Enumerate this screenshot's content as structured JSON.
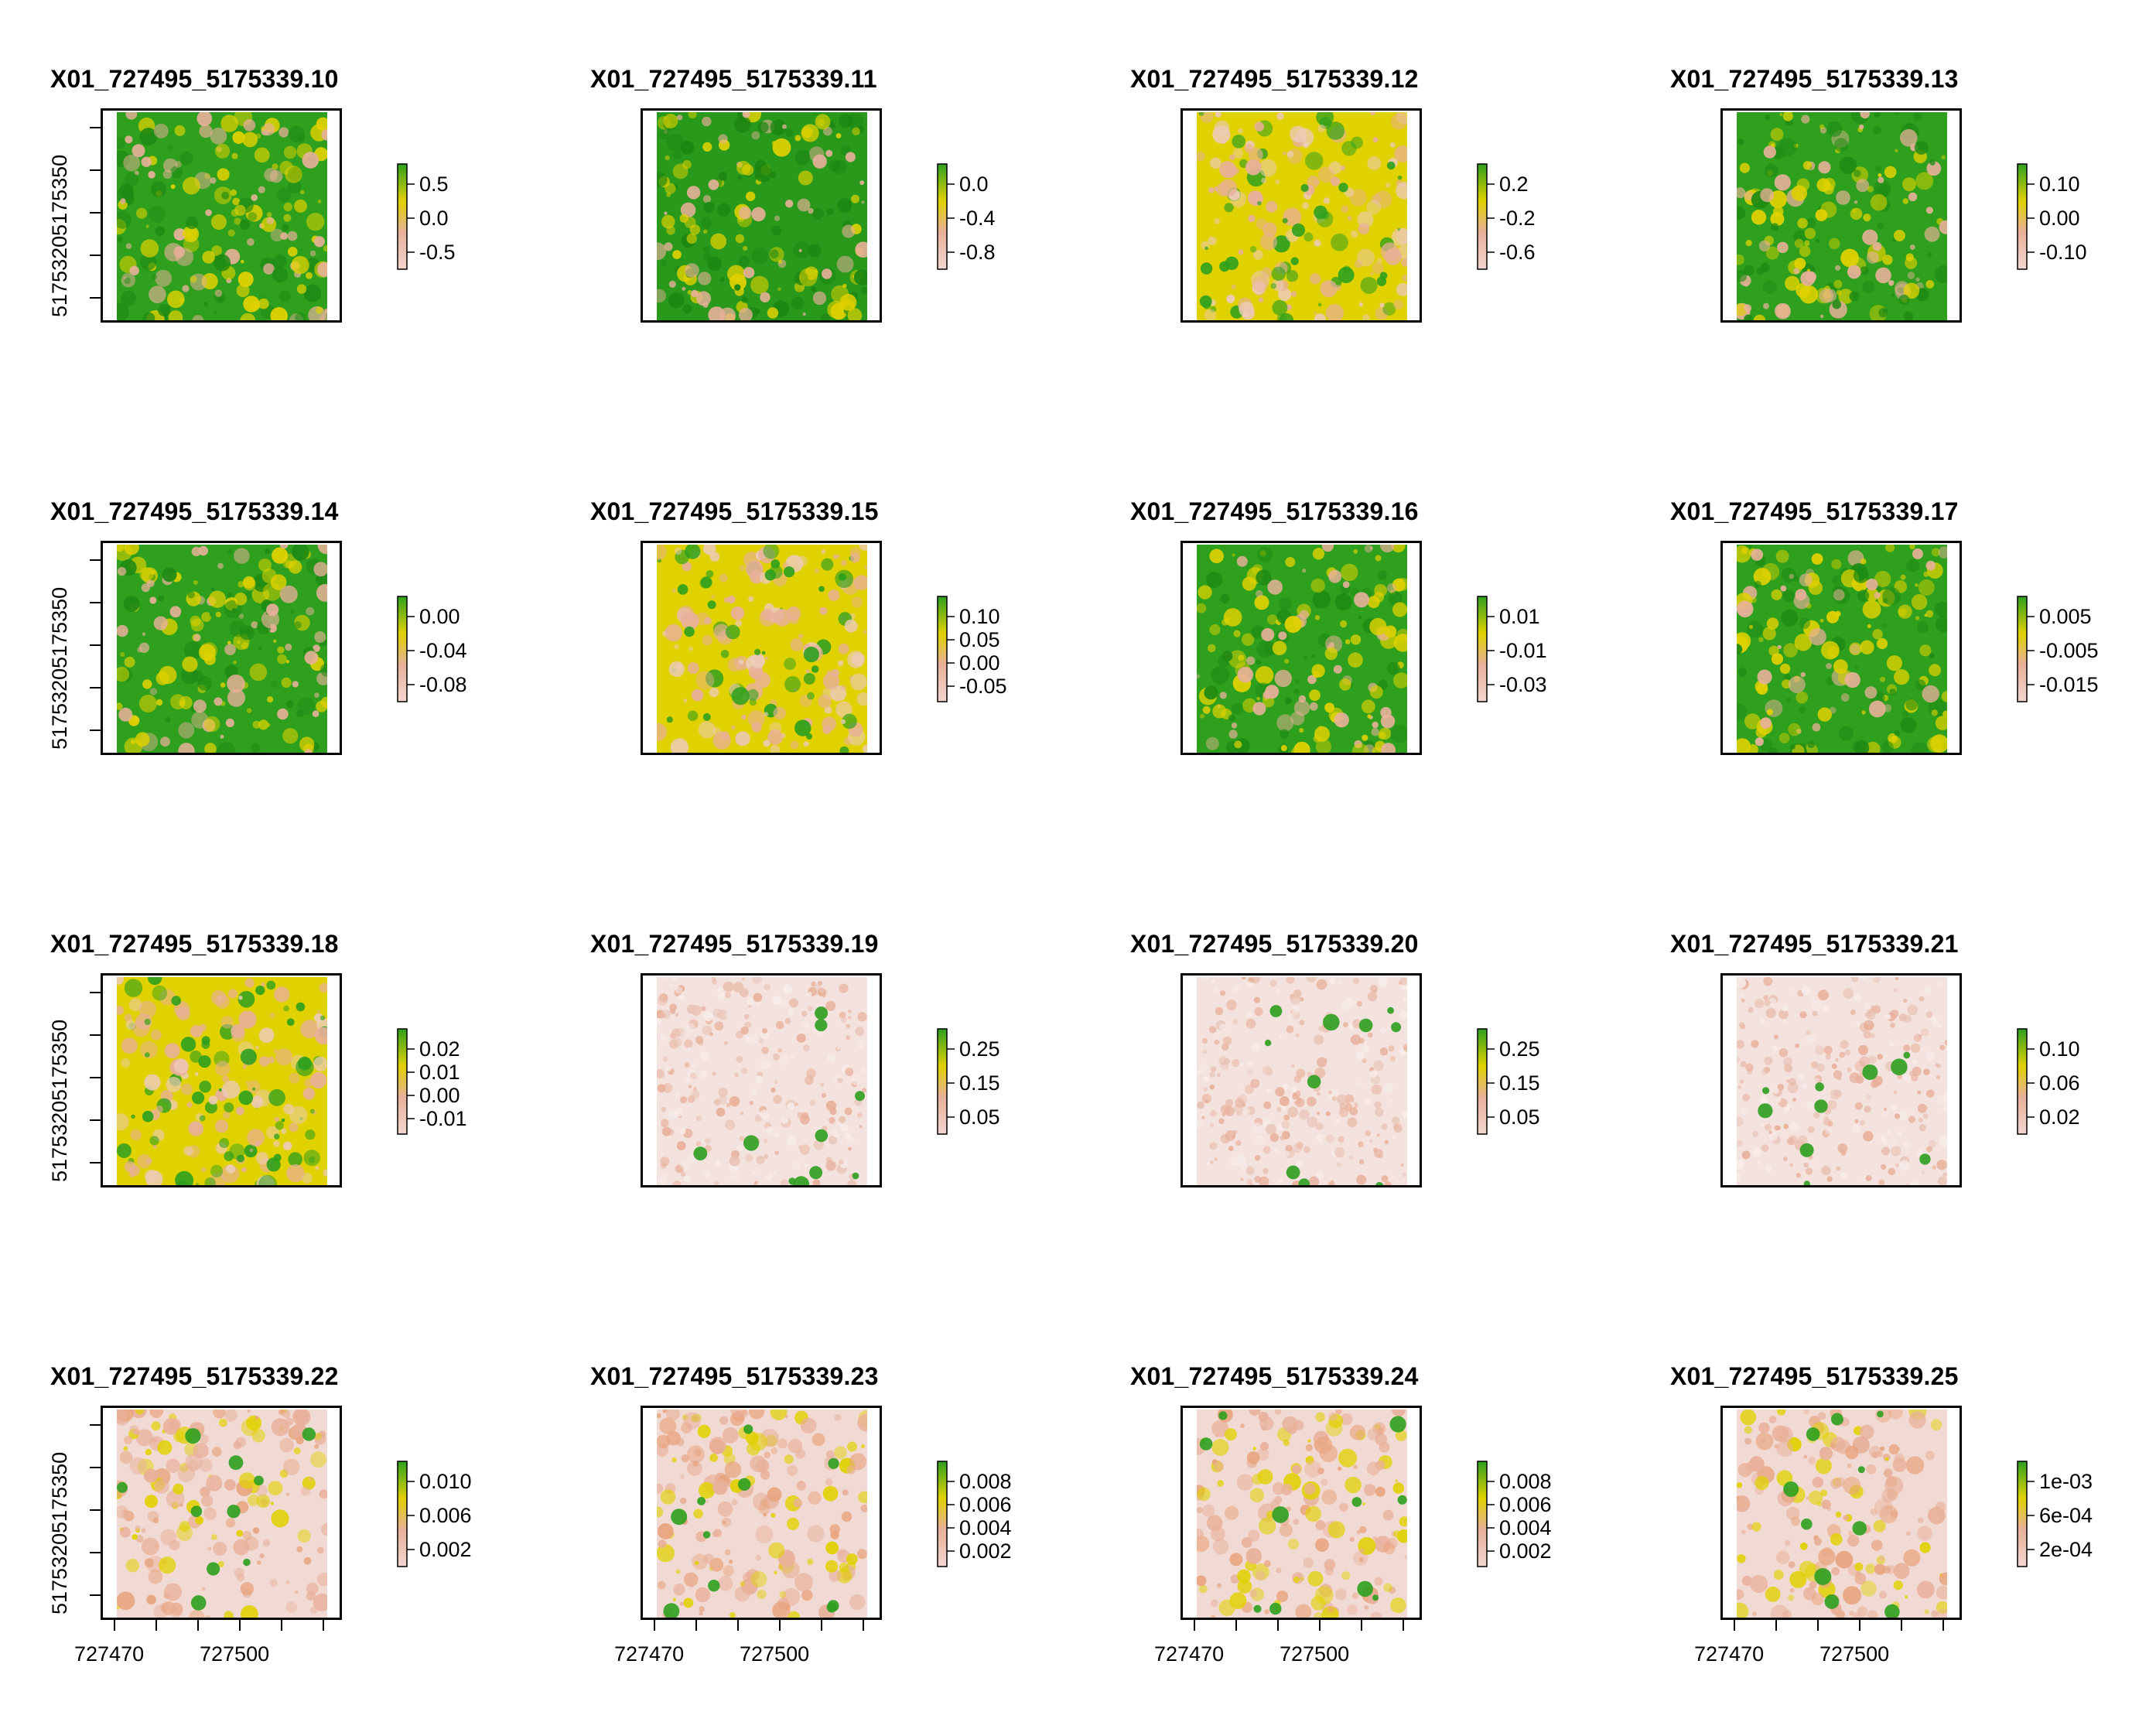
{
  "colors": {
    "green": "#2ea01e",
    "yellow": "#e0d100",
    "salmon": "#e8b09a",
    "pale": "#f3e2de"
  },
  "chart_data": [
    {
      "type": "heatmap",
      "title": "X01_727495_5175339.10",
      "legend_ticks": [
        "0.5",
        "0.0",
        "-0.5"
      ],
      "palette": "green",
      "y_ticks": [
        "5175350",
        "5175320"
      ],
      "x_ticks": [],
      "show_y": true,
      "show_x": false
    },
    {
      "type": "heatmap",
      "title": "X01_727495_5175339.11",
      "legend_ticks": [
        "0.0",
        "-0.4",
        "-0.8"
      ],
      "palette": "deepgreen",
      "y_ticks": [],
      "x_ticks": [],
      "show_y": false,
      "show_x": false
    },
    {
      "type": "heatmap",
      "title": "X01_727495_5175339.12",
      "legend_ticks": [
        "0.2",
        "-0.2",
        "-0.6"
      ],
      "palette": "yellow",
      "y_ticks": [],
      "x_ticks": [],
      "show_y": false,
      "show_x": false
    },
    {
      "type": "heatmap",
      "title": "X01_727495_5175339.13",
      "legend_ticks": [
        "0.10",
        "0.00",
        "-0.10"
      ],
      "palette": "green",
      "y_ticks": [],
      "x_ticks": [],
      "show_y": false,
      "show_x": false
    },
    {
      "type": "heatmap",
      "title": "X01_727495_5175339.14",
      "legend_ticks": [
        "0.00",
        "-0.04",
        "-0.08"
      ],
      "palette": "green",
      "y_ticks": [
        "5175350",
        "5175320"
      ],
      "x_ticks": [],
      "show_y": true,
      "show_x": false
    },
    {
      "type": "heatmap",
      "title": "X01_727495_5175339.15",
      "legend_ticks": [
        "0.10",
        "0.05",
        "0.00",
        "-0.05"
      ],
      "palette": "yellow",
      "y_ticks": [],
      "x_ticks": [],
      "show_y": false,
      "show_x": false
    },
    {
      "type": "heatmap",
      "title": "X01_727495_5175339.16",
      "legend_ticks": [
        "0.01",
        "-0.01",
        "-0.03"
      ],
      "palette": "green",
      "y_ticks": [],
      "x_ticks": [],
      "show_y": false,
      "show_x": false
    },
    {
      "type": "heatmap",
      "title": "X01_727495_5175339.17",
      "legend_ticks": [
        "0.005",
        "-0.005",
        "-0.015"
      ],
      "palette": "green",
      "y_ticks": [],
      "x_ticks": [],
      "show_y": false,
      "show_x": false
    },
    {
      "type": "heatmap",
      "title": "X01_727495_5175339.18",
      "legend_ticks": [
        "0.02",
        "0.01",
        "0.00",
        "-0.01"
      ],
      "palette": "yellow",
      "y_ticks": [
        "5175350",
        "5175320"
      ],
      "x_ticks": [],
      "show_y": true,
      "show_x": false
    },
    {
      "type": "heatmap",
      "title": "X01_727495_5175339.19",
      "legend_ticks": [
        "0.25",
        "0.15",
        "0.05"
      ],
      "palette": "pale",
      "y_ticks": [],
      "x_ticks": [],
      "show_y": false,
      "show_x": false
    },
    {
      "type": "heatmap",
      "title": "X01_727495_5175339.20",
      "legend_ticks": [
        "0.25",
        "0.15",
        "0.05"
      ],
      "palette": "pale",
      "y_ticks": [],
      "x_ticks": [],
      "show_y": false,
      "show_x": false
    },
    {
      "type": "heatmap",
      "title": "X01_727495_5175339.21",
      "legend_ticks": [
        "0.10",
        "0.06",
        "0.02"
      ],
      "palette": "pale",
      "y_ticks": [],
      "x_ticks": [],
      "show_y": false,
      "show_x": false
    },
    {
      "type": "heatmap",
      "title": "X01_727495_5175339.22",
      "legend_ticks": [
        "0.010",
        "0.006",
        "0.002"
      ],
      "palette": "salmon",
      "y_ticks": [
        "5175350",
        "5175320"
      ],
      "x_ticks": [
        "727470",
        "727500"
      ],
      "show_y": true,
      "show_x": true
    },
    {
      "type": "heatmap",
      "title": "X01_727495_5175339.23",
      "legend_ticks": [
        "0.008",
        "0.006",
        "0.004",
        "0.002"
      ],
      "palette": "salmon",
      "y_ticks": [],
      "x_ticks": [
        "727470",
        "727500"
      ],
      "show_y": false,
      "show_x": true
    },
    {
      "type": "heatmap",
      "title": "X01_727495_5175339.24",
      "legend_ticks": [
        "0.008",
        "0.006",
        "0.004",
        "0.002"
      ],
      "palette": "salmon",
      "y_ticks": [],
      "x_ticks": [
        "727470",
        "727500"
      ],
      "show_y": false,
      "show_x": true
    },
    {
      "type": "heatmap",
      "title": "X01_727495_5175339.25",
      "legend_ticks": [
        "1e-03",
        "6e-04",
        "2e-04"
      ],
      "palette": "salmon",
      "y_ticks": [],
      "x_ticks": [
        "727470",
        "727500"
      ],
      "show_y": false,
      "show_x": true
    }
  ]
}
